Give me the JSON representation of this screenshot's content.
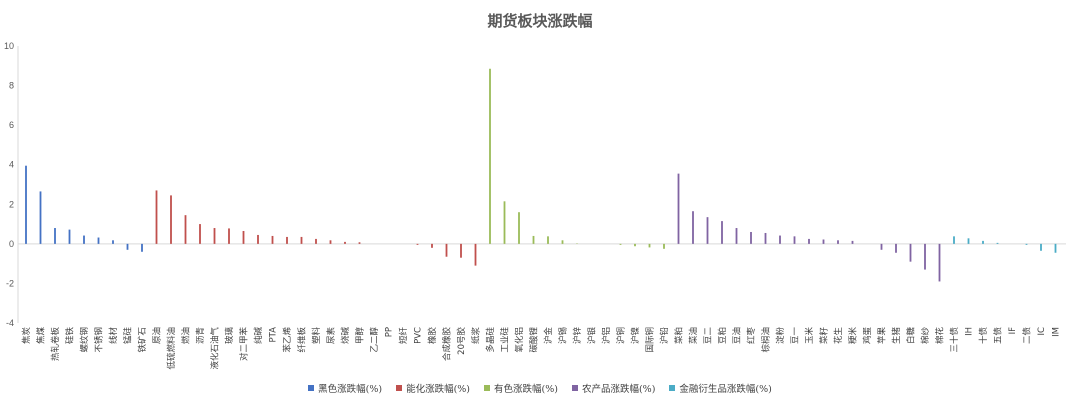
{
  "chart_data": {
    "type": "bar",
    "title": "期货板块涨跌幅",
    "xlabel": "",
    "ylabel": "",
    "ylim": [
      -4,
      10
    ],
    "yticks": [
      -4,
      -2,
      0,
      2,
      4,
      6,
      8,
      10
    ],
    "grid": false,
    "legend_position": "bottom",
    "series": [
      {
        "name": "黑色涨跌幅(%)",
        "color": "#4472c4",
        "categories": [
          "焦炭",
          "焦煤",
          "热轧卷板",
          "硅铁",
          "螺纹钢",
          "不锈钢",
          "线材",
          "锰硅",
          "铁矿石"
        ],
        "values": [
          3.95,
          2.65,
          0.8,
          0.72,
          0.42,
          0.32,
          0.18,
          -0.3,
          -0.4
        ]
      },
      {
        "name": "能化涨跌幅(%)",
        "color": "#c0504d",
        "categories": [
          "原油",
          "低硫燃料油",
          "燃油",
          "沥青",
          "液化石油气",
          "玻璃",
          "对二甲苯",
          "纯碱",
          "PTA",
          "苯乙烯",
          "纤维板",
          "塑料",
          "尿素",
          "烧碱",
          "甲醇",
          "乙二醇",
          "PP",
          "短纤",
          "PVC",
          "橡胶",
          "合成橡胶",
          "20号胶",
          "纸浆"
        ],
        "values": [
          2.7,
          2.45,
          1.45,
          1.0,
          0.8,
          0.78,
          0.65,
          0.45,
          0.4,
          0.35,
          0.35,
          0.25,
          0.18,
          0.1,
          0.08,
          0.0,
          0.0,
          0.0,
          -0.05,
          -0.2,
          -0.65,
          -0.7,
          -1.1
        ]
      },
      {
        "name": "有色涨跌幅(%)",
        "color": "#9bbb59",
        "categories": [
          "多晶硅",
          "工业硅",
          "氧化铝",
          "碳酸锂",
          "沪金",
          "沪锡",
          "沪锌",
          "沪银",
          "沪铝",
          "沪铜",
          "沪镍",
          "国际铜",
          "沪铅"
        ],
        "values": [
          8.85,
          2.15,
          1.6,
          0.4,
          0.38,
          0.18,
          0.02,
          0.0,
          0.0,
          -0.05,
          -0.12,
          -0.18,
          -0.25
        ]
      },
      {
        "name": "农产品涨跌幅(%)",
        "color": "#8064a2",
        "categories": [
          "菜粕",
          "菜油",
          "豆二",
          "豆粕",
          "豆油",
          "红枣",
          "棕榈油",
          "淀粉",
          "豆一",
          "玉米",
          "菜籽",
          "花生",
          "粳米",
          "鸡蛋",
          "苹果",
          "生猪",
          "白糖",
          "棉纱",
          "棉花"
        ],
        "values": [
          3.55,
          1.65,
          1.35,
          1.15,
          0.8,
          0.6,
          0.55,
          0.42,
          0.38,
          0.25,
          0.22,
          0.18,
          0.15,
          0.0,
          -0.3,
          -0.45,
          -0.9,
          -1.3,
          -1.9
        ]
      },
      {
        "name": "金融衍生品涨跌幅(%)",
        "color": "#4bacc6",
        "categories": [
          "三十债",
          "IH",
          "十债",
          "五债",
          "IF",
          "二债",
          "IC",
          "IM"
        ],
        "values": [
          0.38,
          0.28,
          0.15,
          0.05,
          0.0,
          -0.05,
          -0.35,
          -0.45
        ]
      }
    ]
  }
}
